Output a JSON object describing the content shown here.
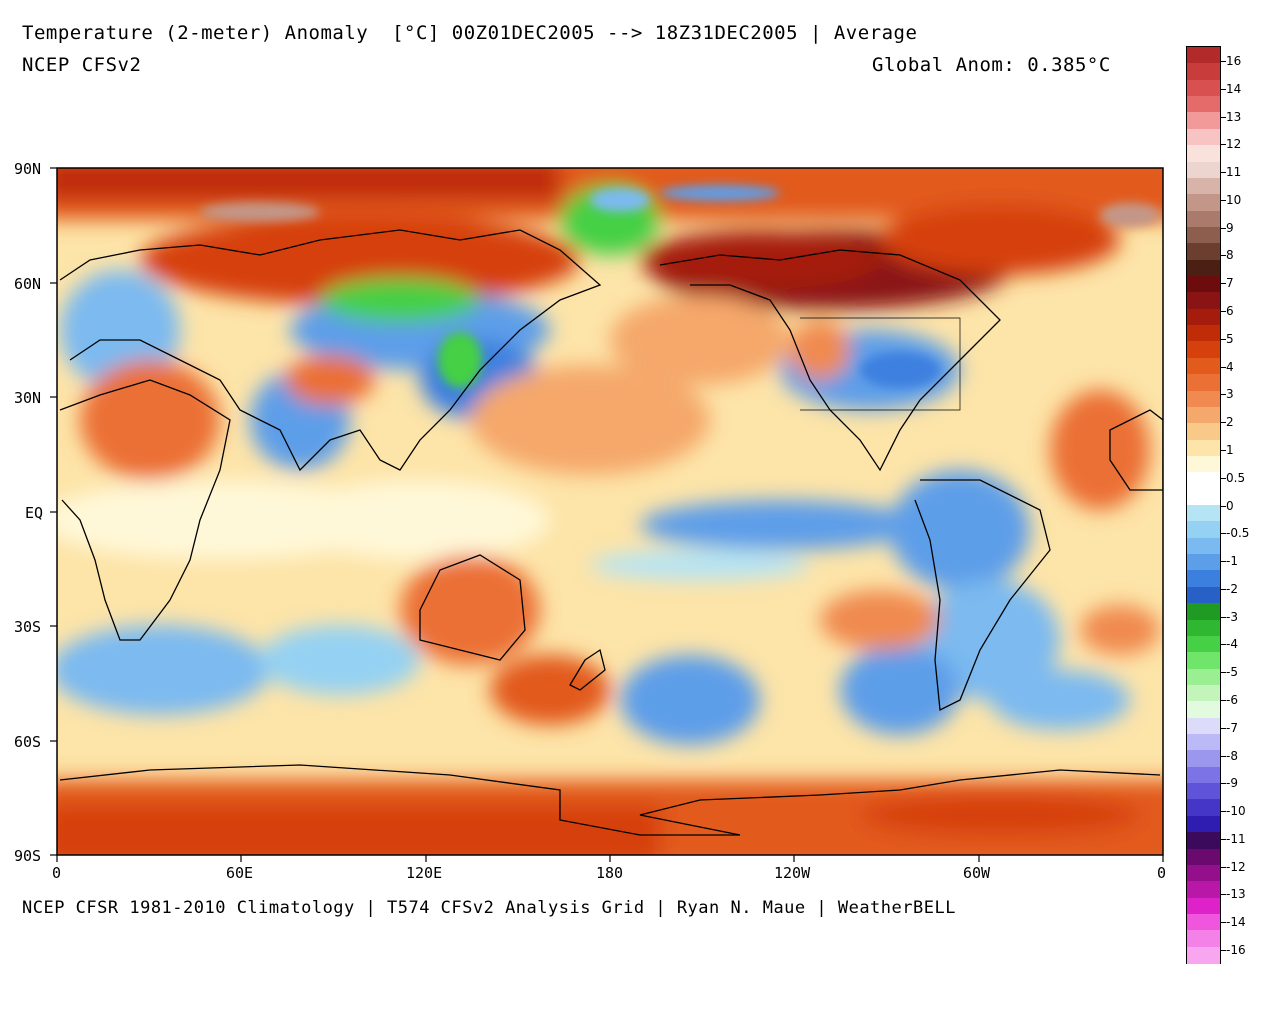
{
  "header": {
    "title": "Temperature (2-meter) Anomaly  [°C] 00Z01DEC2005 --> 18Z31DEC2005 | Average",
    "model": "NCEP CFSv2",
    "global_anom": "Global Anom: 0.385°C"
  },
  "footer": "NCEP CFSR 1981-2010 Climatology | T574 CFSv2 Analysis Grid | Ryan N. Maue | WeatherBELL",
  "axes": {
    "lat_labels": [
      "90N",
      "60N",
      "30N",
      "EQ",
      "30S",
      "60S",
      "90S"
    ],
    "lon_labels": [
      "0",
      "60E",
      "120E",
      "180",
      "120W",
      "60W",
      "0"
    ]
  },
  "colorbar": {
    "labels": [
      "16",
      "14",
      "13",
      "12",
      "11",
      "10",
      "9",
      "8",
      "7",
      "6",
      "5",
      "4",
      "3",
      "2",
      "1",
      "0.5",
      "0",
      "-0.5",
      "-1",
      "-2",
      "-3",
      "-4",
      "-5",
      "-6",
      "-7",
      "-8",
      "-9",
      "-10",
      "-11",
      "-12",
      "-13",
      "-14",
      "-16"
    ],
    "colors": [
      "#b22a2a",
      "#c83c3c",
      "#d85050",
      "#e56b6b",
      "#f29a9a",
      "#f7c3c3",
      "#f9e1dc",
      "#ecd5cf",
      "#d7b3a9",
      "#c29789",
      "#aa7b6c",
      "#8d5d4d",
      "#6b3e30",
      "#4b1f14",
      "#6d0c0c",
      "#8a1414",
      "#a51b0c",
      "#c02b08",
      "#d6400c",
      "#e25a1c",
      "#eb7035",
      "#f08a50",
      "#f5a86b",
      "#f9c98a",
      "#fde4a8",
      "#fff8d8",
      "#ffffff",
      "#ffffff",
      "#b5e4f5",
      "#94d1f3",
      "#7bbaf0",
      "#5d9ee9",
      "#3c80df",
      "#2761c8",
      "#1f9a22",
      "#2fb731",
      "#45d045",
      "#6fe56a",
      "#99ef91",
      "#c3f5bb",
      "#e2fadd",
      "#dcdcfa",
      "#bbb9f6",
      "#9b97ef",
      "#7c74e6",
      "#5f53d9",
      "#4536c7",
      "#2f1cb0",
      "#3c0a5c",
      "#6a0a6e",
      "#940f8c",
      "#b917a8",
      "#dd22c9",
      "#ef55dd",
      "#f481e8",
      "#f7a6ef"
    ]
  },
  "map": {
    "description_layers": [
      {
        "name": "arctic-warm",
        "color": "#d6400c"
      },
      {
        "name": "antarctic-warm",
        "color": "#d6400c"
      },
      {
        "name": "pacific-warm",
        "color": "#f5a86b"
      },
      {
        "name": "cold-blue",
        "color": "#5d9ee9"
      },
      {
        "name": "very-warm",
        "color": "#8a1414"
      },
      {
        "name": "cold-green",
        "color": "#45d045"
      },
      {
        "name": "neutral",
        "color": "#fff8d8"
      }
    ]
  }
}
